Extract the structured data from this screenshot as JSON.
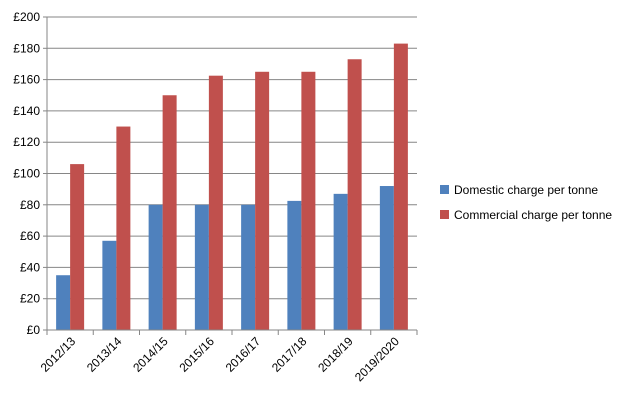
{
  "chart_data": {
    "type": "bar",
    "categories": [
      "2012/13",
      "2013/14",
      "2014/15",
      "2015/16",
      "2016/17",
      "2017/18",
      "2018/19",
      "2019/2020"
    ],
    "series": [
      {
        "name": "Domestic charge per tonne",
        "color": "#4F81BD",
        "values": [
          35,
          57,
          80,
          80,
          80,
          82.5,
          87,
          92
        ]
      },
      {
        "name": "Commercial charge per tonne",
        "color": "#C0504D",
        "values": [
          106,
          130,
          150,
          162.5,
          165,
          165,
          173,
          183
        ]
      }
    ],
    "y_ticks": [
      "£0",
      "£20",
      "£40",
      "£60",
      "£80",
      "£100",
      "£120",
      "£140",
      "£160",
      "£180",
      "£200"
    ],
    "ylim": [
      0,
      200
    ],
    "y_step": 20,
    "grid": true,
    "legend_position": "right",
    "title": "",
    "xlabel": "",
    "ylabel": ""
  }
}
